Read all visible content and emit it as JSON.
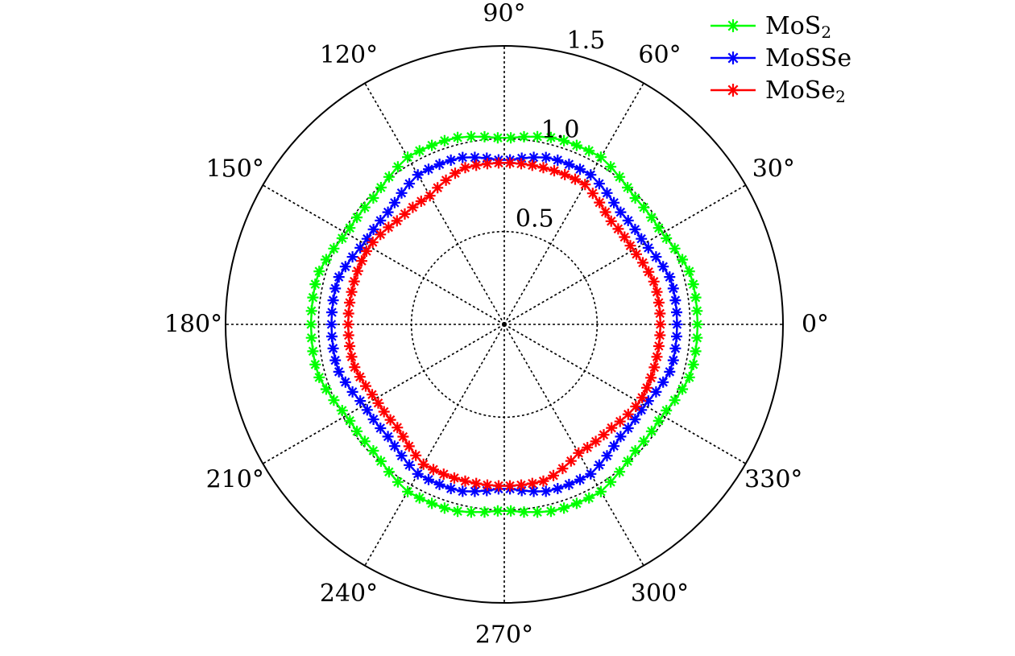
{
  "chart_data": {
    "type": "polar-line",
    "title": "",
    "angular_unit": "degrees",
    "angle_ticks": [
      {
        "angle": 0,
        "label": "0°"
      },
      {
        "angle": 30,
        "label": "30°"
      },
      {
        "angle": 60,
        "label": "60°"
      },
      {
        "angle": 90,
        "label": "90°"
      },
      {
        "angle": 120,
        "label": "120°"
      },
      {
        "angle": 150,
        "label": "150°"
      },
      {
        "angle": 180,
        "label": "180°"
      },
      {
        "angle": 210,
        "label": "210°"
      },
      {
        "angle": 240,
        "label": "240°"
      },
      {
        "angle": 270,
        "label": "270°"
      },
      {
        "angle": 300,
        "label": "300°"
      },
      {
        "angle": 330,
        "label": "330°"
      }
    ],
    "radial_ticks": [
      {
        "value": 0.5,
        "label": "0.5"
      },
      {
        "value": 1.0,
        "label": "1.0"
      },
      {
        "value": 1.5,
        "label": "1.5"
      }
    ],
    "rlim": [
      0,
      1.5
    ],
    "grid": true,
    "legend_position": "top-right",
    "marker": "asterisk",
    "series": [
      {
        "name": "MoS",
        "name_sub": "2",
        "color": "#00ff00",
        "angles": [
          0,
          15,
          30,
          45,
          60,
          75,
          90,
          105,
          120,
          135,
          150,
          165,
          180,
          195,
          210,
          225,
          240,
          255,
          270,
          285,
          300,
          315,
          330,
          345
        ],
        "r": [
          1.04,
          1.04,
          0.98,
          0.98,
          1.04,
          1.04,
          1.0,
          1.04,
          1.04,
          0.98,
          0.98,
          1.04,
          1.04,
          1.04,
          0.98,
          0.98,
          1.04,
          1.04,
          1.0,
          1.04,
          1.04,
          0.98,
          0.98,
          1.04
        ]
      },
      {
        "name": "MoSSe",
        "name_sub": "",
        "color": "#0000ff",
        "angles": [
          0,
          15,
          30,
          45,
          60,
          75,
          90,
          105,
          120,
          135,
          150,
          165,
          180,
          195,
          210,
          225,
          240,
          255,
          270,
          285,
          300,
          315,
          330,
          345
        ],
        "r": [
          0.93,
          0.93,
          0.87,
          0.87,
          0.93,
          0.93,
          0.88,
          0.93,
          0.93,
          0.87,
          0.87,
          0.93,
          0.93,
          0.93,
          0.87,
          0.87,
          0.93,
          0.93,
          0.88,
          0.93,
          0.93,
          0.87,
          0.87,
          0.93
        ]
      },
      {
        "name": "MoSe",
        "name_sub": "2",
        "color": "#ff0000",
        "angles": [
          0,
          15,
          30,
          45,
          60,
          75,
          90,
          105,
          120,
          135,
          150,
          165,
          180,
          195,
          210,
          225,
          240,
          255,
          270,
          285,
          300,
          315,
          330,
          345
        ],
        "r": [
          0.84,
          0.84,
          0.8,
          0.8,
          0.87,
          0.87,
          0.87,
          0.87,
          0.8,
          0.8,
          0.84,
          0.84,
          0.84,
          0.84,
          0.8,
          0.8,
          0.87,
          0.87,
          0.87,
          0.87,
          0.8,
          0.8,
          0.84,
          0.84
        ]
      }
    ]
  }
}
